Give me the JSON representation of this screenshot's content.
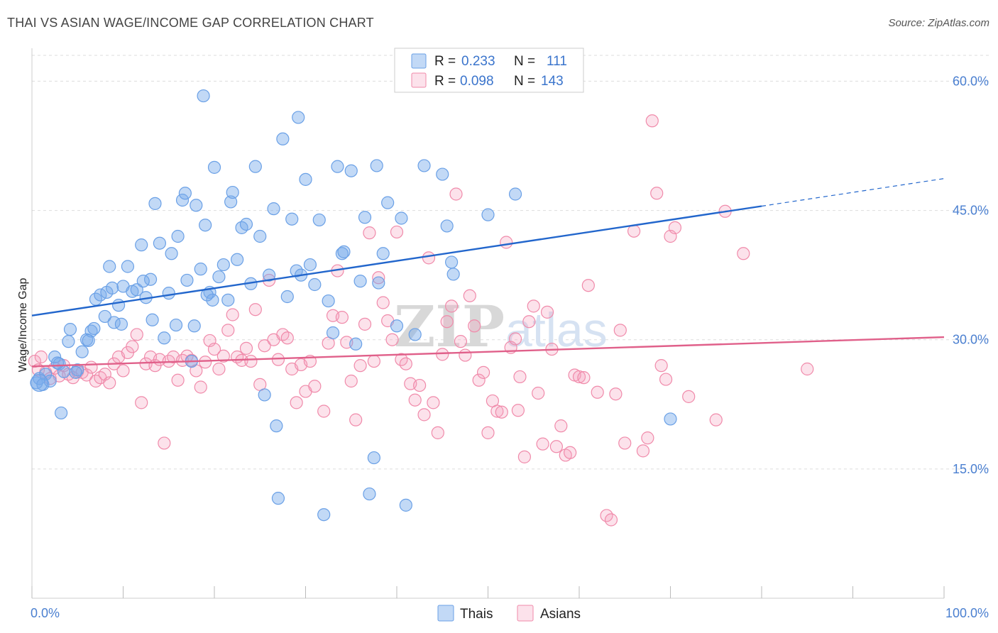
{
  "title": "THAI VS ASIAN WAGE/INCOME GAP CORRELATION CHART",
  "source": "Source: ZipAtlas.com",
  "colors": {
    "thais": "#6aa0e6",
    "thais_fill": "rgba(120,170,235,0.45)",
    "thais_line": "#2266cc",
    "asians": "#f08aaa",
    "asians_fill": "rgba(245,160,190,0.30)",
    "asians_line": "#e0608a",
    "grid": "#dddddd",
    "tick": "#4a7fd0"
  },
  "legend": {
    "rows": [
      {
        "r_label": "R =",
        "r_value": "0.233",
        "n_label": "N =",
        "n_value": "111"
      },
      {
        "r_label": "R =",
        "r_value": "0.098",
        "n_label": "N =",
        "n_value": "143"
      }
    ]
  },
  "bottom_legend": [
    "Thais",
    "Asians"
  ],
  "watermark": {
    "a": "ZIP",
    "b": "atlas"
  },
  "chart_data": {
    "type": "scatter",
    "ylabel": "Wage/Income Gap",
    "xlim": [
      0,
      100
    ],
    "ylim": [
      0,
      63
    ],
    "x_tick_labels": [
      "0.0%",
      "100.0%"
    ],
    "y_ticks": [
      15,
      30,
      45,
      60
    ],
    "y_tick_labels": [
      "15.0%",
      "30.0%",
      "45.0%",
      "60.0%"
    ],
    "grid": true,
    "legend_position": "top-center",
    "series": [
      {
        "name": "Thais",
        "trend": {
          "x0": 0,
          "y0": 32.8,
          "x1": 80,
          "y1": 45.5,
          "dashed_to_x": 100,
          "dashed_to_y": 48.7
        },
        "points": [
          [
            0.5,
            25
          ],
          [
            0.8,
            25.5
          ],
          [
            1.2,
            24.8
          ],
          [
            1.5,
            26
          ],
          [
            2,
            25.2
          ],
          [
            2.5,
            28
          ],
          [
            3,
            27.2
          ],
          [
            3.2,
            21.5
          ],
          [
            3.5,
            26.3
          ],
          [
            4,
            29.8
          ],
          [
            4.2,
            31.2
          ],
          [
            5,
            26.5
          ],
          [
            5.5,
            28.6
          ],
          [
            6,
            30
          ],
          [
            6.5,
            31
          ],
          [
            6.8,
            31.3
          ],
          [
            7,
            34.7
          ],
          [
            7.5,
            35.2
          ],
          [
            8,
            32.7
          ],
          [
            8.2,
            35.5
          ],
          [
            8.5,
            38.5
          ],
          [
            8.8,
            36
          ],
          [
            9,
            32
          ],
          [
            9.5,
            34
          ],
          [
            10,
            36.2
          ],
          [
            10.5,
            38.5
          ],
          [
            11,
            35.6
          ],
          [
            11.5,
            35.8
          ],
          [
            12,
            41
          ],
          [
            12.5,
            34.9
          ],
          [
            13,
            37
          ],
          [
            13.2,
            32.3
          ],
          [
            13.5,
            45.8
          ],
          [
            14,
            41.2
          ],
          [
            14.5,
            30.2
          ],
          [
            15,
            35.4
          ],
          [
            15.3,
            40
          ],
          [
            15.8,
            31.7
          ],
          [
            16,
            42
          ],
          [
            16.5,
            46.2
          ],
          [
            16.8,
            47
          ],
          [
            17,
            36.9
          ],
          [
            17.5,
            27.5
          ],
          [
            17.8,
            31.6
          ],
          [
            18,
            45.6
          ],
          [
            18.5,
            38.2
          ],
          [
            18.8,
            58.3
          ],
          [
            19,
            43.3
          ],
          [
            19.5,
            35.5
          ],
          [
            19.8,
            34.6
          ],
          [
            20,
            50
          ],
          [
            20.5,
            37.3
          ],
          [
            21,
            38.7
          ],
          [
            21.5,
            34.6
          ],
          [
            21.8,
            46
          ],
          [
            22,
            47.1
          ],
          [
            22.5,
            39.3
          ],
          [
            23,
            43
          ],
          [
            23.5,
            43.4
          ],
          [
            24,
            36.5
          ],
          [
            24.5,
            50.1
          ],
          [
            25,
            42
          ],
          [
            25.5,
            23.6
          ],
          [
            26,
            37.5
          ],
          [
            26.5,
            45.2
          ],
          [
            26.8,
            20
          ],
          [
            27,
            11.6
          ],
          [
            27.5,
            53.3
          ],
          [
            28,
            35
          ],
          [
            28.5,
            44
          ],
          [
            29,
            38
          ],
          [
            29.5,
            37.5
          ],
          [
            30,
            48.6
          ],
          [
            30.5,
            38.7
          ],
          [
            31,
            36.4
          ],
          [
            31.5,
            43.9
          ],
          [
            32,
            9.7
          ],
          [
            32.5,
            34.5
          ],
          [
            33,
            30.8
          ],
          [
            33.5,
            50.1
          ],
          [
            34,
            40
          ],
          [
            34.2,
            40.2
          ],
          [
            35,
            49.6
          ],
          [
            35.5,
            29.5
          ],
          [
            36,
            36.8
          ],
          [
            36.5,
            44.2
          ],
          [
            37,
            12.1
          ],
          [
            37.5,
            16.3
          ],
          [
            37.8,
            50.2
          ],
          [
            38,
            36.6
          ],
          [
            38.5,
            40
          ],
          [
            39,
            45.9
          ],
          [
            40,
            31.6
          ],
          [
            40.5,
            44.1
          ],
          [
            41,
            10.8
          ],
          [
            42,
            30.6
          ],
          [
            43,
            50.2
          ],
          [
            45,
            49.2
          ],
          [
            45.5,
            43.2
          ],
          [
            46,
            39
          ],
          [
            46.2,
            37.6
          ],
          [
            50,
            44.5
          ],
          [
            53,
            46.9
          ],
          [
            70,
            20.8
          ],
          [
            2.8,
            27.3
          ],
          [
            4.8,
            26.2
          ],
          [
            6.2,
            29.9
          ],
          [
            9.8,
            31.8
          ],
          [
            12.2,
            36.8
          ],
          [
            19.2,
            35.2
          ],
          [
            29.2,
            55.8
          ]
        ]
      },
      {
        "name": "Asians",
        "trend": {
          "x0": 0,
          "y0": 26.9,
          "x1": 100,
          "y1": 30.3
        },
        "points": [
          [
            0.3,
            27.5
          ],
          [
            0.7,
            26.5
          ],
          [
            1,
            28
          ],
          [
            1.5,
            26.2
          ],
          [
            2,
            25.5
          ],
          [
            2.5,
            26.7
          ],
          [
            3,
            25.8
          ],
          [
            3.5,
            27
          ],
          [
            4,
            26
          ],
          [
            4.5,
            25.6
          ],
          [
            5,
            26.3
          ],
          [
            5.5,
            26.2
          ],
          [
            6,
            25.9
          ],
          [
            6.5,
            26.8
          ],
          [
            7,
            25.2
          ],
          [
            7.5,
            25.6
          ],
          [
            8,
            26
          ],
          [
            8.5,
            25
          ],
          [
            9,
            27.2
          ],
          [
            9.5,
            28
          ],
          [
            10,
            26.4
          ],
          [
            10.5,
            28.5
          ],
          [
            11,
            29.2
          ],
          [
            11.5,
            30.6
          ],
          [
            12,
            22.7
          ],
          [
            12.5,
            27.2
          ],
          [
            13,
            28
          ],
          [
            13.5,
            27
          ],
          [
            14,
            27.7
          ],
          [
            14.5,
            18
          ],
          [
            15,
            27.5
          ],
          [
            15.5,
            28
          ],
          [
            16,
            25.3
          ],
          [
            16.5,
            27.6
          ],
          [
            17,
            28.1
          ],
          [
            17.5,
            27.6
          ],
          [
            18,
            26.4
          ],
          [
            18.5,
            24.5
          ],
          [
            19,
            27.4
          ],
          [
            19.5,
            29.9
          ],
          [
            20,
            28.9
          ],
          [
            20.5,
            26.6
          ],
          [
            21,
            28.1
          ],
          [
            21.5,
            31.1
          ],
          [
            22,
            32.9
          ],
          [
            22.5,
            28
          ],
          [
            23,
            27.6
          ],
          [
            23.5,
            29
          ],
          [
            24,
            27.5
          ],
          [
            24.5,
            33.5
          ],
          [
            25,
            24.8
          ],
          [
            25.5,
            29.3
          ],
          [
            26,
            36.9
          ],
          [
            26.5,
            30
          ],
          [
            27,
            27.7
          ],
          [
            27.5,
            30.6
          ],
          [
            28,
            30.2
          ],
          [
            28.5,
            26.6
          ],
          [
            29,
            22.7
          ],
          [
            29.5,
            27.1
          ],
          [
            30,
            24
          ],
          [
            30.5,
            27.5
          ],
          [
            31,
            24.6
          ],
          [
            32,
            21.7
          ],
          [
            32.5,
            29.6
          ],
          [
            33,
            32.8
          ],
          [
            33.5,
            38
          ],
          [
            34,
            32.6
          ],
          [
            34.5,
            29.7
          ],
          [
            35,
            25.2
          ],
          [
            35.5,
            20.7
          ],
          [
            36,
            27
          ],
          [
            36.5,
            31.8
          ],
          [
            37,
            42.4
          ],
          [
            37.5,
            27.5
          ],
          [
            38,
            37.2
          ],
          [
            38.5,
            34.3
          ],
          [
            39,
            32.2
          ],
          [
            39.5,
            30
          ],
          [
            40,
            42.5
          ],
          [
            40.5,
            27.7
          ],
          [
            41,
            27.2
          ],
          [
            41.5,
            24.9
          ],
          [
            42,
            23
          ],
          [
            42.5,
            24.7
          ],
          [
            43,
            21.3
          ],
          [
            43.5,
            39.5
          ],
          [
            44,
            22.7
          ],
          [
            44.5,
            19.2
          ],
          [
            45,
            28.3
          ],
          [
            45.5,
            32.1
          ],
          [
            46,
            33.9
          ],
          [
            46.5,
            46.9
          ],
          [
            47,
            29.8
          ],
          [
            47.5,
            28.2
          ],
          [
            48,
            35.1
          ],
          [
            48.5,
            31.6
          ],
          [
            49,
            25.3
          ],
          [
            49.5,
            26.2
          ],
          [
            50,
            19.2
          ],
          [
            50.5,
            22.9
          ],
          [
            51,
            21.7
          ],
          [
            51.5,
            21.6
          ],
          [
            52,
            41.3
          ],
          [
            52.5,
            29.1
          ],
          [
            53,
            30.1
          ],
          [
            53.5,
            25.7
          ],
          [
            54,
            16.4
          ],
          [
            54.5,
            32.1
          ],
          [
            55,
            33.9
          ],
          [
            55.5,
            23.8
          ],
          [
            56,
            17.9
          ],
          [
            56.5,
            33.2
          ],
          [
            57,
            28.9
          ],
          [
            57.5,
            17.6
          ],
          [
            58,
            20
          ],
          [
            58.5,
            16.6
          ],
          [
            59,
            16.9
          ],
          [
            59.5,
            25.9
          ],
          [
            60,
            25.7
          ],
          [
            60.5,
            25.6
          ],
          [
            61,
            36.3
          ],
          [
            62,
            23.9
          ],
          [
            63,
            9.6
          ],
          [
            63.5,
            9.1
          ],
          [
            64,
            23.7
          ],
          [
            64.5,
            31.1
          ],
          [
            65,
            18
          ],
          [
            66,
            42.6
          ],
          [
            67,
            17.1
          ],
          [
            67.5,
            18.6
          ],
          [
            68,
            55.4
          ],
          [
            68.5,
            47
          ],
          [
            69,
            27
          ],
          [
            69.5,
            25.4
          ],
          [
            70,
            42
          ],
          [
            70.5,
            43
          ],
          [
            72,
            23.4
          ],
          [
            75,
            20.7
          ],
          [
            76,
            44.9
          ],
          [
            78,
            40
          ],
          [
            85,
            26.6
          ],
          [
            53.3,
            21.8
          ]
        ]
      }
    ]
  }
}
